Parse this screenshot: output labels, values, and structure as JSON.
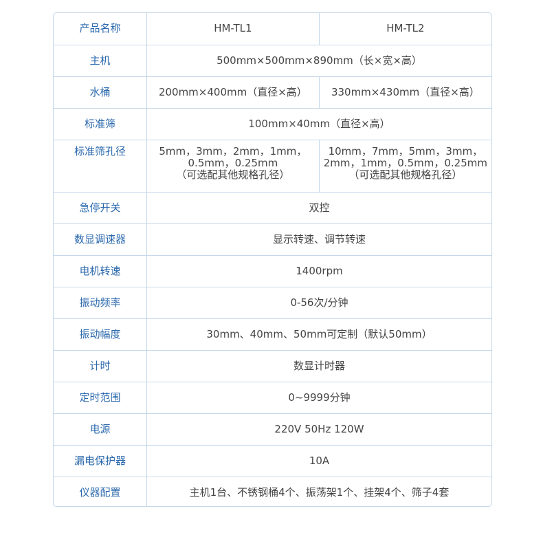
{
  "header": {
    "label": "产品名称",
    "models": [
      "HM-TL1",
      "HM-TL2"
    ]
  },
  "rows": [
    {
      "label": "主机",
      "value": "500mm×500mm×890mm（长×宽×高）"
    },
    {
      "label": "水桶",
      "values": [
        "200mm×400mm（直径×高）",
        "330mm×430mm（直径×高）"
      ]
    },
    {
      "label": "标准筛",
      "value": "100mm×40mm（直径×高）"
    },
    {
      "label": "标准筛孔径",
      "values_lines": [
        [
          "5mm，3mm，2mm，1mm，",
          "0.5mm，0.25mm",
          "（可选配其他规格孔径）"
        ],
        [
          "10mm，7mm，5mm，3mm，",
          "2mm，1mm，0.5mm，0.25mm",
          "（可选配其他规格孔径）"
        ]
      ]
    },
    {
      "label": "急停开关",
      "value": "双控"
    },
    {
      "label": "数显调速器",
      "value": "显示转速、调节转速"
    },
    {
      "label": "电机转速",
      "value": "1400rpm"
    },
    {
      "label": "振动频率",
      "value": "0-56次/分钟"
    },
    {
      "label": "振动幅度",
      "value": "30mm、40mm、50mm可定制（默认50mm）"
    },
    {
      "label": "计时",
      "value": "数显计时器"
    },
    {
      "label": "定时范围",
      "value": "0~9999分钟"
    },
    {
      "label": "电源",
      "value": "220V 50Hz 120W"
    },
    {
      "label": "漏电保护器",
      "value": "10A"
    },
    {
      "label": "仪器配置",
      "value": "主机1台、不锈钢桶4个、振荡架1个、挂架4个、筛子4套"
    }
  ],
  "colors": {
    "label": "#2a68ad",
    "border": "#c6d8ea",
    "text": "#444444"
  }
}
